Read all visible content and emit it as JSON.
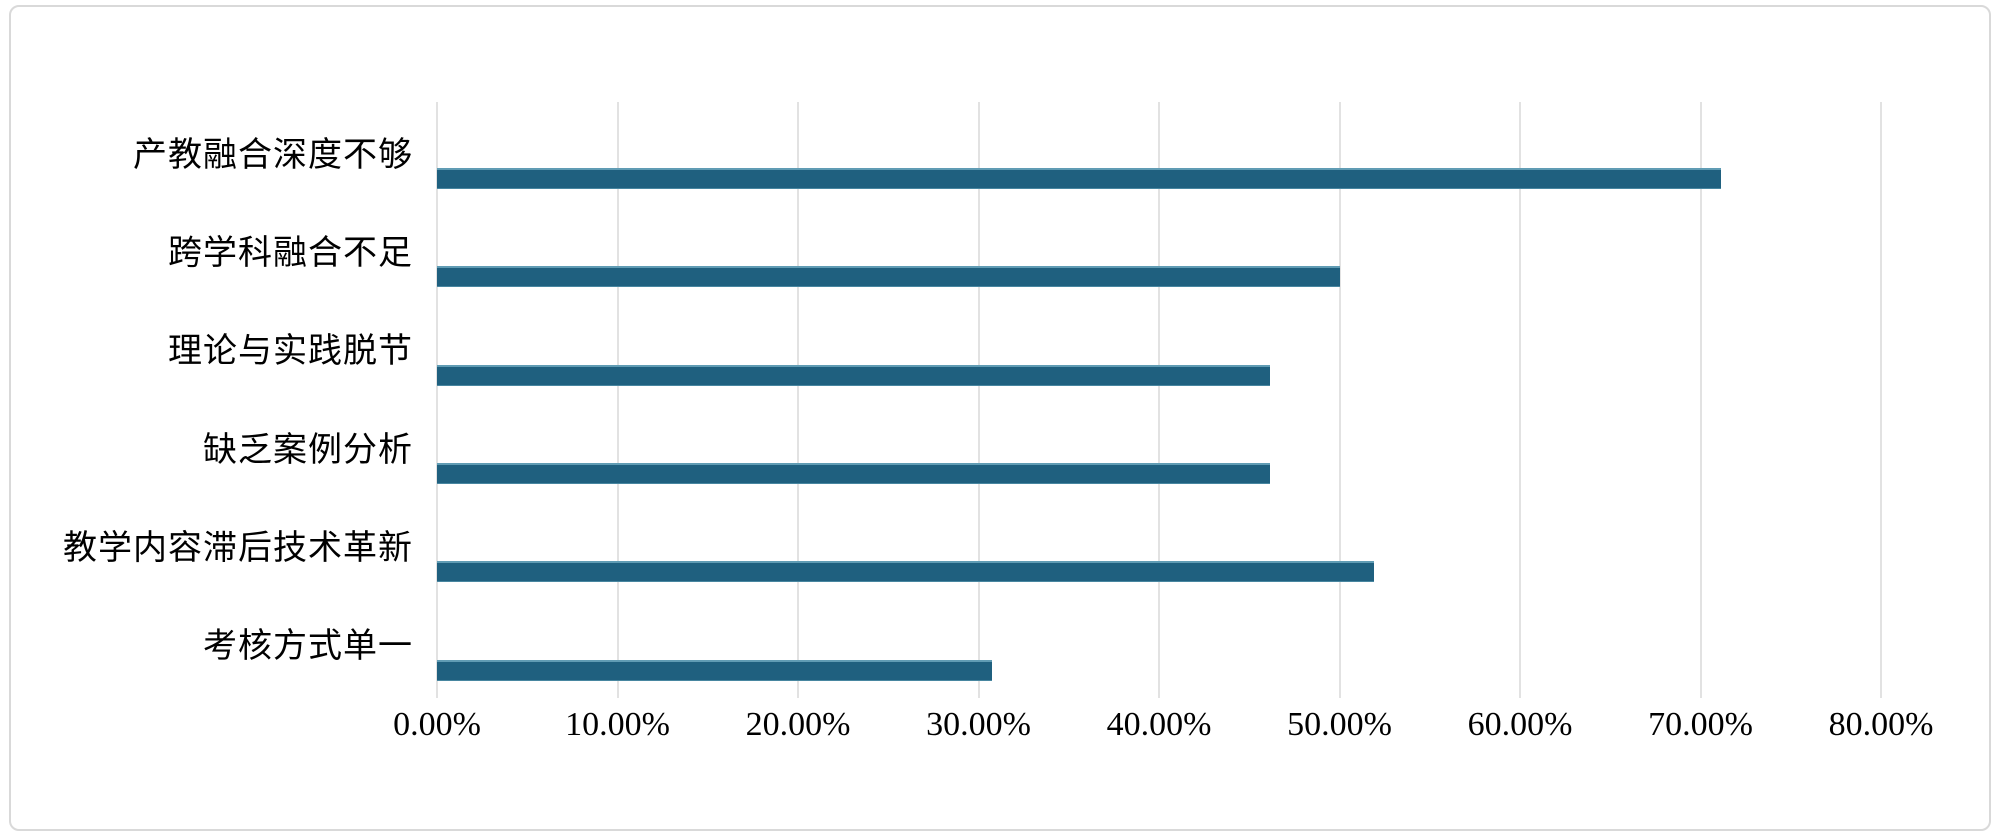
{
  "chart_data": {
    "type": "bar",
    "orientation": "horizontal",
    "title": "",
    "xlabel": "",
    "ylabel": "",
    "legend": "none",
    "grid": "vertical-light-gray",
    "categories": [
      "产教融合深度不够",
      "跨学科融合不足",
      "理论与实践脱节",
      "缺乏案例分析",
      "教学内容滞后技术革新",
      "考核方式单一"
    ],
    "values": [
      71.15,
      50.0,
      46.15,
      46.15,
      51.92,
      30.77
    ],
    "value_unit": "%",
    "x_axis": {
      "min": 0,
      "max": 80,
      "step": 10,
      "tick_labels": [
        "0.00%",
        "10.00%",
        "20.00%",
        "30.00%",
        "40.00%",
        "50.00%",
        "60.00%",
        "70.00%",
        "80.00%"
      ]
    },
    "colors": {
      "bar": "#1f607f",
      "gridline": "#e2e2e2",
      "frame_border": "#d9d9d9",
      "text": "#000000",
      "background": "#ffffff"
    }
  }
}
